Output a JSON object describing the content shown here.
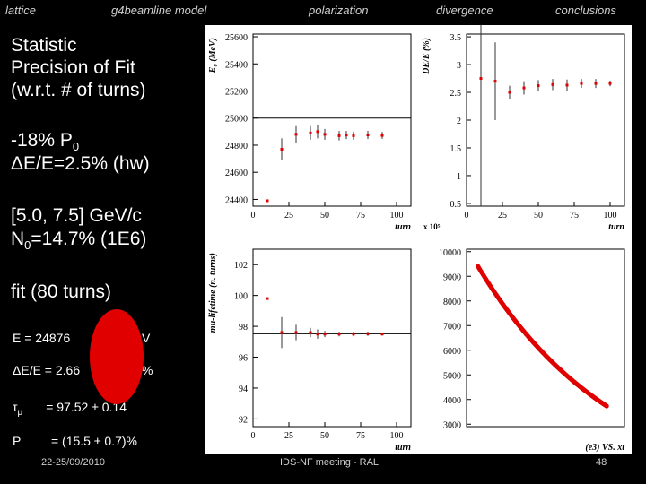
{
  "nav": {
    "items": [
      "lattice",
      "g4beamline model",
      "polarization",
      "divergence",
      "conclusions"
    ]
  },
  "left": {
    "title_lines": [
      "Statistic",
      "Precision of Fit",
      "(w.r.t. # of turns)"
    ],
    "p0_line": "-18% P",
    "p0_sub": "0",
    "de_line": "ΔE/E=2.5% (hw)",
    "range_line": "[5.0, 7.5] GeV/c",
    "n0_prefix": "N",
    "n0_sub": "0",
    "n0_rest": "=14.7% (1E6)",
    "fit_line": "fit (80 turns)",
    "e_line": "E =  24876",
    "e_unit_tail": "V",
    "dee_line": "ΔE/E = 2.66",
    "dee_tail": "%",
    "tau_symbol": "τ",
    "tau_sub": "μ",
    "tau_value": "= 97.52 ± 0.14",
    "p_symbol": "P",
    "p_value": "= (15.5 ± 0.7)%"
  },
  "footer": {
    "date": "22-25/09/2010",
    "meeting": "IDS-NF meeting - RAL",
    "page": "48"
  },
  "colors": {
    "marker": "#e00000",
    "background": "#000000",
    "plot_bg": "#ffffff"
  },
  "chart_data": [
    {
      "type": "scatter",
      "ylabel": "E₀ (MeV)",
      "xlabel": "turn",
      "xlim": [
        0,
        110
      ],
      "ylim": [
        24350,
        25620
      ],
      "xticks": [
        0,
        25,
        50,
        75,
        100
      ],
      "yticks": [
        24400,
        24600,
        24800,
        25000,
        25200,
        25400,
        25600
      ],
      "reference_line": 25000,
      "points": [
        {
          "x": 10,
          "y": 24390,
          "err": 0
        },
        {
          "x": 20,
          "y": 24770,
          "err": 80
        },
        {
          "x": 30,
          "y": 24880,
          "err": 60
        },
        {
          "x": 40,
          "y": 24890,
          "err": 50
        },
        {
          "x": 45,
          "y": 24900,
          "err": 50
        },
        {
          "x": 50,
          "y": 24880,
          "err": 40
        },
        {
          "x": 60,
          "y": 24870,
          "err": 35
        },
        {
          "x": 65,
          "y": 24875,
          "err": 30
        },
        {
          "x": 70,
          "y": 24870,
          "err": 30
        },
        {
          "x": 80,
          "y": 24876,
          "err": 30
        },
        {
          "x": 90,
          "y": 24872,
          "err": 25
        }
      ]
    },
    {
      "type": "scatter",
      "ylabel": "DE/E (%)",
      "xlabel": "turn",
      "axis_note": "x 10⁵",
      "xlim": [
        0,
        110
      ],
      "ylim": [
        0.45,
        3.55
      ],
      "xticks": [
        0,
        25,
        50,
        75,
        100
      ],
      "yticks": [
        0.5,
        1,
        1.5,
        2,
        2.5,
        3,
        3.5
      ],
      "points": [
        {
          "x": 10,
          "y": 2.75,
          "err": 2.3
        },
        {
          "x": 20,
          "y": 2.7,
          "err": 0.7
        },
        {
          "x": 30,
          "y": 2.5,
          "err": 0.12
        },
        {
          "x": 40,
          "y": 2.58,
          "err": 0.12
        },
        {
          "x": 50,
          "y": 2.62,
          "err": 0.1
        },
        {
          "x": 60,
          "y": 2.64,
          "err": 0.1
        },
        {
          "x": 70,
          "y": 2.63,
          "err": 0.1
        },
        {
          "x": 80,
          "y": 2.66,
          "err": 0.08
        },
        {
          "x": 90,
          "y": 2.66,
          "err": 0.08
        },
        {
          "x": 100,
          "y": 2.66,
          "err": 0.05
        }
      ]
    },
    {
      "type": "scatter",
      "ylabel": "mu-lifetime (n. turns)",
      "xlabel": "turn",
      "xlim": [
        0,
        110
      ],
      "ylim": [
        91.5,
        103
      ],
      "xticks": [
        0,
        25,
        50,
        75,
        100
      ],
      "yticks": [
        92,
        94,
        96,
        98,
        100,
        102
      ],
      "reference_line": 97.52,
      "points": [
        {
          "x": 10,
          "y": 99.8,
          "err": 0
        },
        {
          "x": 20,
          "y": 97.6,
          "err": 1.0
        },
        {
          "x": 30,
          "y": 97.6,
          "err": 0.5
        },
        {
          "x": 40,
          "y": 97.6,
          "err": 0.3
        },
        {
          "x": 45,
          "y": 97.5,
          "err": 0.3
        },
        {
          "x": 50,
          "y": 97.5,
          "err": 0.2
        },
        {
          "x": 60,
          "y": 97.5,
          "err": 0.15
        },
        {
          "x": 70,
          "y": 97.5,
          "err": 0.15
        },
        {
          "x": 80,
          "y": 97.52,
          "err": 0.14
        },
        {
          "x": 90,
          "y": 97.5,
          "err": 0.1
        }
      ]
    },
    {
      "type": "scatter",
      "xlabel": "(e3) VS. xt",
      "xlim": [
        0,
        110
      ],
      "ylim": [
        2900,
        10100
      ],
      "yticks": [
        3000,
        4000,
        5000,
        6000,
        7000,
        8000,
        9000,
        10000
      ],
      "curve": {
        "y0": 9400,
        "x_start": 8,
        "x_end": 98,
        "decay": 0.0103
      }
    }
  ]
}
